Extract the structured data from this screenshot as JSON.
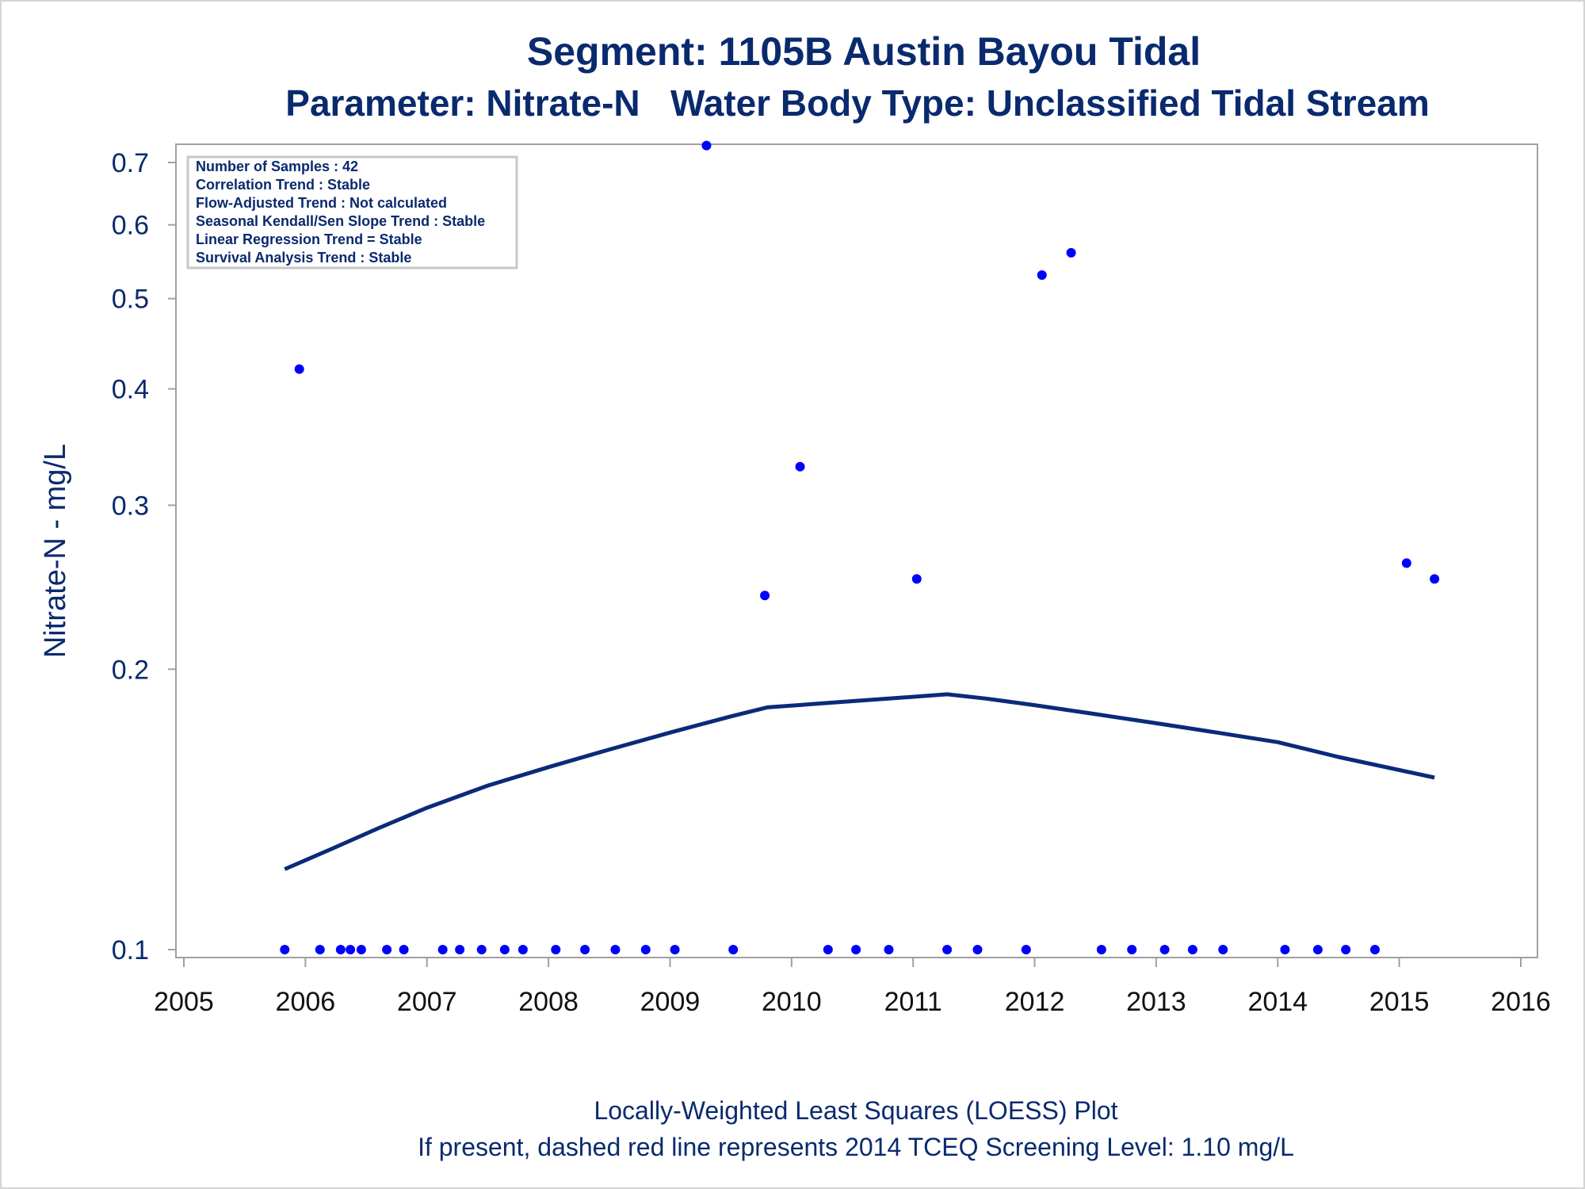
{
  "chart_data": {
    "type": "scatter",
    "title": "Segment: 1105B  Austin Bayou Tidal",
    "subtitle": "Parameter: Nitrate-N   Water Body Type: Unclassified Tidal Stream",
    "xlabel": "",
    "ylabel": "Nitrate-N - mg/L",
    "y_scale": "log",
    "ylim": [
      0.1,
      0.75
    ],
    "xlim": [
      2005,
      2016
    ],
    "x_ticks": [
      "2005",
      "2006",
      "2007",
      "2008",
      "2009",
      "2010",
      "2011",
      "2012",
      "2013",
      "2014",
      "2015",
      "2016"
    ],
    "y_ticks": [
      "0.1",
      "0.2",
      "0.3",
      "0.4",
      "0.5",
      "0.6",
      "0.7"
    ],
    "grid": false,
    "colors": {
      "points": "#0000ff",
      "loess": "#0a2a7a",
      "text": "#0a2a6e",
      "frame": "#a0a0a0"
    },
    "stats_box": {
      "lines": [
        "Number of Samples : 42",
        "Correlation Trend : Stable",
        "Flow-Adjusted Trend : Not calculated",
        "Seasonal Kendall/Sen Slope Trend : Stable",
        "Linear Regression Trend = Stable",
        "Survival Analysis Trend : Stable"
      ],
      "placement": "top-left"
    },
    "footnotes": [
      "Locally-Weighted Least Squares (LOESS) Plot",
      "If present, dashed red line represents 2014 TCEQ Screening Level: 1.10 mg/L"
    ],
    "series": [
      {
        "type": "scatter",
        "points": [
          {
            "x": 2005.83,
            "y": 0.1
          },
          {
            "x": 2005.95,
            "y": 0.42
          },
          {
            "x": 2006.12,
            "y": 0.1
          },
          {
            "x": 2006.29,
            "y": 0.1
          },
          {
            "x": 2006.37,
            "y": 0.1
          },
          {
            "x": 2006.46,
            "y": 0.1
          },
          {
            "x": 2006.67,
            "y": 0.1
          },
          {
            "x": 2006.81,
            "y": 0.1
          },
          {
            "x": 2007.13,
            "y": 0.1
          },
          {
            "x": 2007.27,
            "y": 0.1
          },
          {
            "x": 2007.45,
            "y": 0.1
          },
          {
            "x": 2007.64,
            "y": 0.1
          },
          {
            "x": 2007.79,
            "y": 0.1
          },
          {
            "x": 2008.06,
            "y": 0.1
          },
          {
            "x": 2008.3,
            "y": 0.1
          },
          {
            "x": 2008.55,
            "y": 0.1
          },
          {
            "x": 2008.8,
            "y": 0.1
          },
          {
            "x": 2009.04,
            "y": 0.1
          },
          {
            "x": 2009.3,
            "y": 0.73
          },
          {
            "x": 2009.52,
            "y": 0.1
          },
          {
            "x": 2009.78,
            "y": 0.24
          },
          {
            "x": 2010.07,
            "y": 0.33
          },
          {
            "x": 2010.3,
            "y": 0.1
          },
          {
            "x": 2010.53,
            "y": 0.1
          },
          {
            "x": 2010.8,
            "y": 0.1
          },
          {
            "x": 2011.03,
            "y": 0.25
          },
          {
            "x": 2011.28,
            "y": 0.1
          },
          {
            "x": 2011.53,
            "y": 0.1
          },
          {
            "x": 2011.93,
            "y": 0.1
          },
          {
            "x": 2012.06,
            "y": 0.53
          },
          {
            "x": 2012.3,
            "y": 0.56
          },
          {
            "x": 2012.55,
            "y": 0.1
          },
          {
            "x": 2012.8,
            "y": 0.1
          },
          {
            "x": 2013.07,
            "y": 0.1
          },
          {
            "x": 2013.3,
            "y": 0.1
          },
          {
            "x": 2013.55,
            "y": 0.1
          },
          {
            "x": 2014.06,
            "y": 0.1
          },
          {
            "x": 2014.33,
            "y": 0.1
          },
          {
            "x": 2014.56,
            "y": 0.1
          },
          {
            "x": 2014.8,
            "y": 0.1
          },
          {
            "x": 2015.06,
            "y": 0.26
          },
          {
            "x": 2015.29,
            "y": 0.25
          }
        ]
      },
      {
        "type": "line",
        "points": [
          {
            "x": 2005.83,
            "y": 0.122
          },
          {
            "x": 2006.2,
            "y": 0.128
          },
          {
            "x": 2006.6,
            "y": 0.135
          },
          {
            "x": 2007.0,
            "y": 0.142
          },
          {
            "x": 2007.5,
            "y": 0.15
          },
          {
            "x": 2008.0,
            "y": 0.157
          },
          {
            "x": 2008.5,
            "y": 0.164
          },
          {
            "x": 2009.0,
            "y": 0.171
          },
          {
            "x": 2009.5,
            "y": 0.178
          },
          {
            "x": 2009.8,
            "y": 0.182
          },
          {
            "x": 2010.3,
            "y": 0.184
          },
          {
            "x": 2010.8,
            "y": 0.186
          },
          {
            "x": 2011.28,
            "y": 0.188
          },
          {
            "x": 2011.6,
            "y": 0.186
          },
          {
            "x": 2012.0,
            "y": 0.183
          },
          {
            "x": 2012.5,
            "y": 0.179
          },
          {
            "x": 2013.0,
            "y": 0.175
          },
          {
            "x": 2013.5,
            "y": 0.171
          },
          {
            "x": 2014.0,
            "y": 0.167
          },
          {
            "x": 2014.5,
            "y": 0.161
          },
          {
            "x": 2015.29,
            "y": 0.153
          }
        ]
      }
    ]
  }
}
